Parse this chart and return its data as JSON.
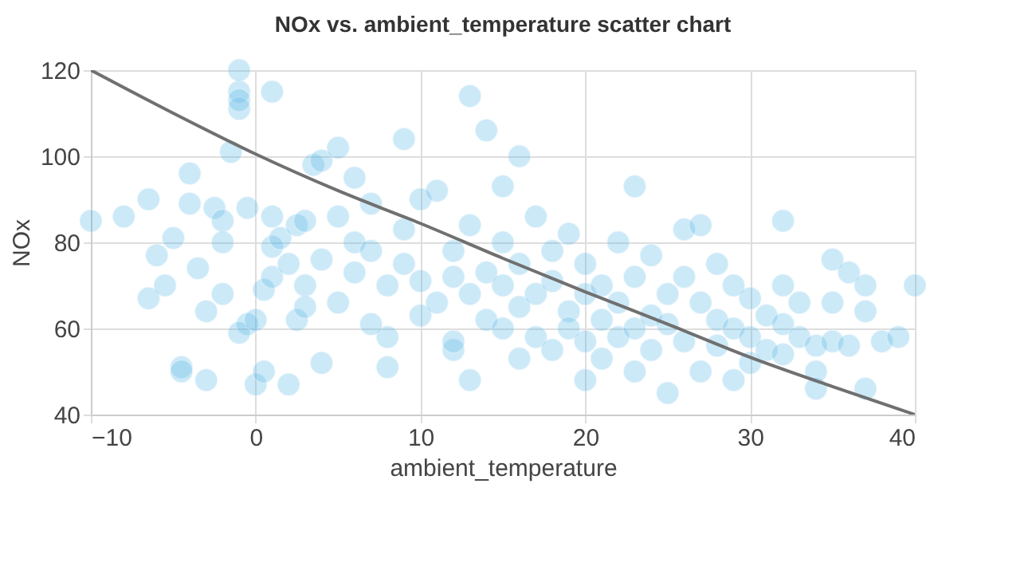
{
  "chart_data": {
    "type": "scatter",
    "title": "NOx vs. ambient_temperature scatter chart",
    "xlabel": "ambient_temperature",
    "ylabel": "NOx",
    "xlim": [
      -10,
      40
    ],
    "xticks": [
      -10,
      0,
      10,
      20,
      30,
      40
    ],
    "ylim": [
      40,
      120
    ],
    "yticks": [
      40,
      60,
      80,
      100,
      120
    ],
    "grid": true,
    "series": [
      {
        "color": "#5ab8e8",
        "marker": "circle",
        "x": [
          -10,
          -8,
          -6.5,
          -6,
          -6.5,
          -5.5,
          -5,
          -4.5,
          -4.5,
          -4,
          -4,
          -3.5,
          -3,
          -2.5,
          -2,
          -2,
          -1.5,
          -1,
          -1,
          -1,
          -1,
          -0.5,
          -0.5,
          -1,
          0,
          0.5,
          1,
          1,
          1,
          1.5,
          2,
          2.5,
          2.5,
          3,
          3,
          3.5,
          4,
          4,
          4,
          5,
          5,
          5,
          6,
          6,
          7,
          7,
          8,
          8,
          0,
          0.5,
          -2,
          -3,
          1,
          2,
          3,
          6,
          7,
          8,
          9,
          9,
          9,
          10,
          10,
          10,
          11,
          11,
          12,
          12,
          12,
          12,
          13,
          13,
          13,
          13,
          14,
          14,
          14,
          15,
          15,
          15,
          15,
          16,
          16,
          16,
          16,
          17,
          17,
          17,
          18,
          18,
          18,
          19,
          19,
          19,
          20,
          20,
          20,
          20,
          21,
          21,
          21,
          22,
          22,
          22,
          23,
          23,
          23,
          23,
          24,
          24,
          24,
          25,
          25,
          25,
          26,
          26,
          26,
          27,
          27,
          27,
          28,
          28,
          28,
          29,
          29,
          29,
          30,
          30,
          30,
          31,
          31,
          32,
          32,
          32,
          32,
          33,
          33,
          34,
          34,
          34,
          35,
          35,
          35,
          36,
          36,
          37,
          37,
          37,
          38,
          39,
          40
        ],
        "values": [
          85,
          86,
          90,
          77,
          67,
          70,
          81,
          51,
          50,
          89,
          96,
          74,
          48,
          88,
          68,
          85,
          101,
          115,
          120,
          111,
          113,
          88,
          61,
          59,
          47,
          50,
          115,
          86,
          79,
          81,
          47,
          84,
          62,
          85,
          70,
          98,
          99,
          52,
          76,
          102,
          86,
          66,
          80,
          95,
          78,
          89,
          70,
          58,
          62,
          69,
          80,
          64,
          72,
          75,
          65,
          73,
          61,
          51,
          75,
          83,
          104,
          71,
          63,
          90,
          66,
          92,
          78,
          72,
          55,
          57,
          114,
          84,
          68,
          48,
          73,
          62,
          106,
          93,
          80,
          70,
          60,
          100,
          75,
          65,
          53,
          86,
          68,
          58,
          78,
          71,
          55,
          82,
          64,
          60,
          75,
          68,
          57,
          48,
          70,
          62,
          53,
          80,
          66,
          58,
          93,
          72,
          60,
          50,
          77,
          63,
          55,
          68,
          61,
          45,
          83,
          72,
          57,
          84,
          66,
          50,
          75,
          62,
          56,
          70,
          60,
          48,
          67,
          58,
          52,
          63,
          55,
          85,
          70,
          61,
          54,
          66,
          58,
          56,
          50,
          46,
          76,
          66,
          57,
          73,
          56,
          64,
          70,
          46,
          57,
          58,
          70
        ]
      },
      {
        "type": "line",
        "marker": "none",
        "color": "#707070",
        "x": [
          -10,
          -5,
          0,
          5,
          10,
          15,
          20,
          25,
          30,
          35,
          40
        ],
        "values": [
          120,
          110,
          100.5,
          92,
          84.4,
          76.3,
          68.5,
          61,
          53.3,
          46.5,
          40
        ]
      }
    ]
  }
}
